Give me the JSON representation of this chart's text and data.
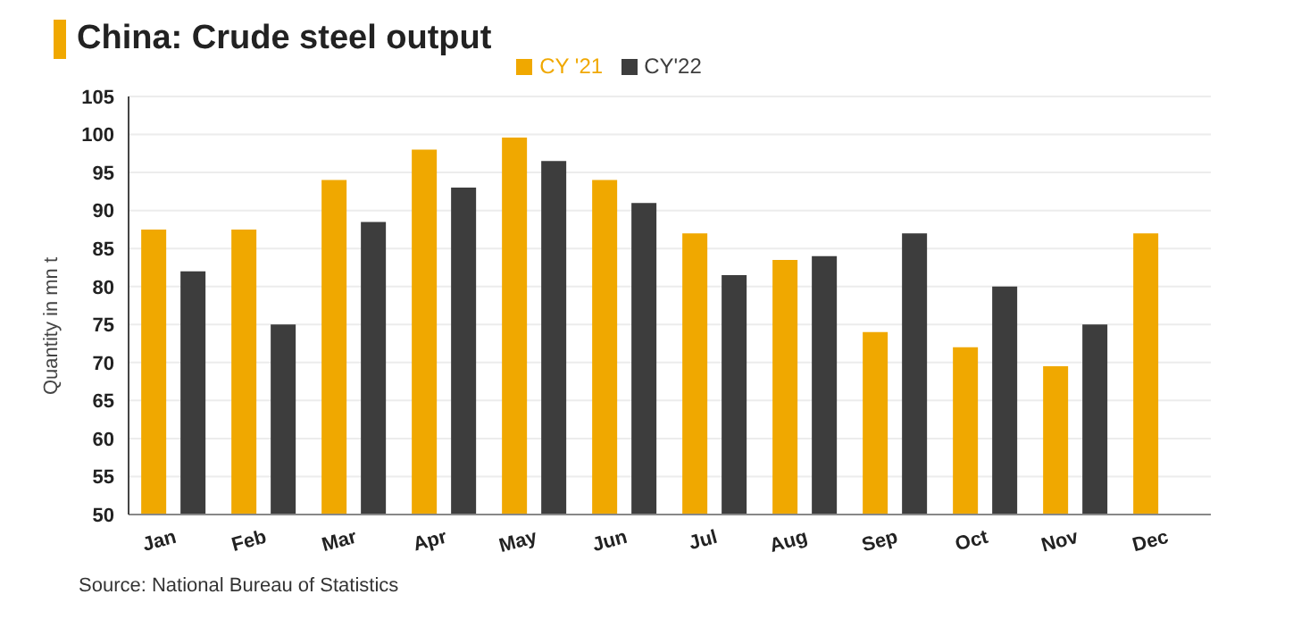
{
  "chart_data": {
    "type": "bar",
    "title": "China: Crude steel output",
    "ylabel": "Quantity in mn t",
    "categories": [
      "Jan",
      "Feb",
      "Mar",
      "Apr",
      "May",
      "Jun",
      "Jul",
      "Aug",
      "Sep",
      "Oct",
      "Nov",
      "Dec"
    ],
    "series": [
      {
        "name": "CY '21",
        "color": "#f0a800",
        "values": [
          87.5,
          87.5,
          94,
          98,
          99.6,
          94,
          87,
          83.5,
          74,
          72,
          69.5,
          87
        ]
      },
      {
        "name": "CY'22",
        "color": "#3d3d3d",
        "values": [
          82,
          75,
          88.5,
          93,
          96.5,
          91,
          81.5,
          84,
          87,
          80,
          75,
          null
        ]
      }
    ],
    "ylim": [
      50,
      105
    ],
    "yticks": [
      50,
      55,
      60,
      65,
      70,
      75,
      80,
      85,
      90,
      95,
      100,
      105
    ],
    "grid": "y",
    "legend": "top",
    "annotations": [
      "Source: National Bureau of Statistics"
    ]
  }
}
